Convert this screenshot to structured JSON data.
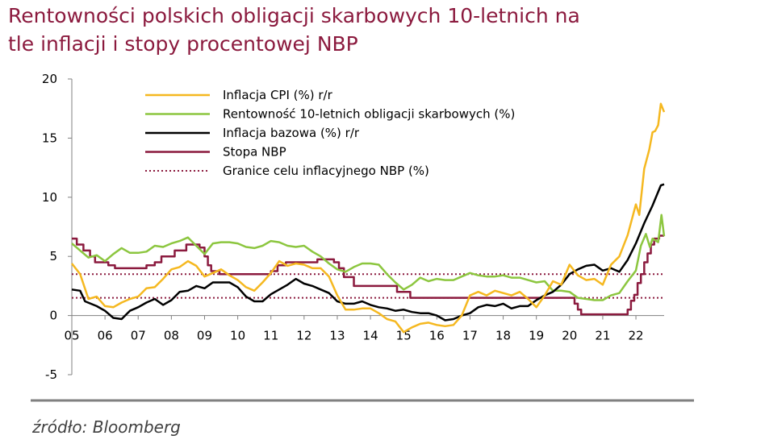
{
  "title_lines": [
    "Rentowności polskich obligacji skarbowych 10-letnich na",
    "tle inflacji i stopy procentowej NBP"
  ],
  "source": "źródło: Bloomberg",
  "colors": {
    "title": "#8b1a3e",
    "cpi": "#f5b820",
    "bond": "#8cc63f",
    "core": "#000000",
    "rate": "#8b1a3e",
    "target": "#8b1a3e",
    "footer_line": "#808080"
  },
  "chart_data": {
    "type": "line",
    "title": "Rentowności polskich obligacji skarbowych 10-letnich na tle inflacji i stopy procentowej NBP",
    "xlabel": "",
    "ylabel": "",
    "xlim": [
      2005,
      2022.85
    ],
    "ylim": [
      -5,
      20
    ],
    "yticks": [
      -5,
      0,
      5,
      10,
      15,
      20
    ],
    "xtick_labels": [
      "05",
      "06",
      "07",
      "08",
      "09",
      "10",
      "11",
      "12",
      "13",
      "14",
      "15",
      "16",
      "17",
      "18",
      "19",
      "20",
      "21",
      "22"
    ],
    "xtick_values": [
      2005,
      2006,
      2007,
      2008,
      2009,
      2010,
      2011,
      2012,
      2013,
      2014,
      2015,
      2016,
      2017,
      2018,
      2019,
      2020,
      2021,
      2022
    ],
    "grid": false,
    "legend_position": "top-left",
    "series": [
      {
        "name": "Inflacja CPI (%) r/r",
        "color_key": "cpi",
        "style": "solid",
        "points": [
          [
            2005,
            4.4
          ],
          [
            2005.25,
            3.5
          ],
          [
            2005.5,
            1.4
          ],
          [
            2005.75,
            1.6
          ],
          [
            2006,
            0.8
          ],
          [
            2006.25,
            0.7
          ],
          [
            2006.5,
            1.1
          ],
          [
            2006.75,
            1.4
          ],
          [
            2007,
            1.6
          ],
          [
            2007.25,
            2.3
          ],
          [
            2007.5,
            2.4
          ],
          [
            2007.75,
            3.1
          ],
          [
            2008,
            3.9
          ],
          [
            2008.25,
            4.1
          ],
          [
            2008.5,
            4.6
          ],
          [
            2008.75,
            4.2
          ],
          [
            2009,
            3.3
          ],
          [
            2009.25,
            3.6
          ],
          [
            2009.5,
            3.9
          ],
          [
            2009.75,
            3.4
          ],
          [
            2010,
            3.0
          ],
          [
            2010.25,
            2.4
          ],
          [
            2010.5,
            2.1
          ],
          [
            2010.75,
            2.8
          ],
          [
            2011,
            3.6
          ],
          [
            2011.25,
            4.6
          ],
          [
            2011.5,
            4.2
          ],
          [
            2011.75,
            4.4
          ],
          [
            2012,
            4.3
          ],
          [
            2012.25,
            4.0
          ],
          [
            2012.5,
            4.0
          ],
          [
            2012.75,
            3.3
          ],
          [
            2013,
            1.7
          ],
          [
            2013.25,
            0.5
          ],
          [
            2013.5,
            0.5
          ],
          [
            2013.75,
            0.6
          ],
          [
            2014,
            0.6
          ],
          [
            2014.25,
            0.2
          ],
          [
            2014.5,
            -0.3
          ],
          [
            2014.75,
            -0.5
          ],
          [
            2015,
            -1.4
          ],
          [
            2015.25,
            -1.0
          ],
          [
            2015.5,
            -0.7
          ],
          [
            2015.75,
            -0.6
          ],
          [
            2016,
            -0.8
          ],
          [
            2016.25,
            -0.9
          ],
          [
            2016.5,
            -0.8
          ],
          [
            2016.75,
            0.0
          ],
          [
            2017,
            1.7
          ],
          [
            2017.25,
            2.0
          ],
          [
            2017.5,
            1.7
          ],
          [
            2017.75,
            2.1
          ],
          [
            2018,
            1.9
          ],
          [
            2018.25,
            1.7
          ],
          [
            2018.5,
            2.0
          ],
          [
            2018.75,
            1.4
          ],
          [
            2019,
            0.7
          ],
          [
            2019.25,
            1.7
          ],
          [
            2019.5,
            2.9
          ],
          [
            2019.75,
            2.6
          ],
          [
            2020,
            4.3
          ],
          [
            2020.25,
            3.4
          ],
          [
            2020.5,
            3.0
          ],
          [
            2020.75,
            3.1
          ],
          [
            2021,
            2.6
          ],
          [
            2021.25,
            4.3
          ],
          [
            2021.5,
            5.0
          ],
          [
            2021.75,
            6.8
          ],
          [
            2022,
            9.4
          ],
          [
            2022.1,
            8.5
          ],
          [
            2022.25,
            12.4
          ],
          [
            2022.4,
            14.0
          ],
          [
            2022.5,
            15.5
          ],
          [
            2022.58,
            15.6
          ],
          [
            2022.67,
            16.1
          ],
          [
            2022.75,
            17.9
          ],
          [
            2022.85,
            17.2
          ]
        ]
      },
      {
        "name": "Rentowność 10-letnich obligacji skarbowych (%)",
        "color_key": "bond",
        "style": "solid",
        "points": [
          [
            2005,
            6.1
          ],
          [
            2005.25,
            5.5
          ],
          [
            2005.5,
            4.9
          ],
          [
            2005.75,
            5.1
          ],
          [
            2006,
            4.6
          ],
          [
            2006.25,
            5.2
          ],
          [
            2006.5,
            5.7
          ],
          [
            2006.75,
            5.3
          ],
          [
            2007,
            5.3
          ],
          [
            2007.25,
            5.4
          ],
          [
            2007.5,
            5.9
          ],
          [
            2007.75,
            5.8
          ],
          [
            2008,
            6.1
          ],
          [
            2008.25,
            6.3
          ],
          [
            2008.5,
            6.6
          ],
          [
            2008.75,
            5.9
          ],
          [
            2009,
            5.2
          ],
          [
            2009.25,
            6.1
          ],
          [
            2009.5,
            6.2
          ],
          [
            2009.75,
            6.2
          ],
          [
            2010,
            6.1
          ],
          [
            2010.25,
            5.8
          ],
          [
            2010.5,
            5.7
          ],
          [
            2010.75,
            5.9
          ],
          [
            2011,
            6.3
          ],
          [
            2011.25,
            6.2
          ],
          [
            2011.5,
            5.9
          ],
          [
            2011.75,
            5.8
          ],
          [
            2012,
            5.9
          ],
          [
            2012.25,
            5.4
          ],
          [
            2012.5,
            5.0
          ],
          [
            2012.75,
            4.4
          ],
          [
            2013,
            3.9
          ],
          [
            2013.25,
            3.7
          ],
          [
            2013.5,
            4.1
          ],
          [
            2013.75,
            4.4
          ],
          [
            2014,
            4.4
          ],
          [
            2014.25,
            4.3
          ],
          [
            2014.5,
            3.5
          ],
          [
            2014.75,
            2.8
          ],
          [
            2015,
            2.2
          ],
          [
            2015.25,
            2.6
          ],
          [
            2015.5,
            3.2
          ],
          [
            2015.75,
            2.9
          ],
          [
            2016,
            3.1
          ],
          [
            2016.25,
            3.0
          ],
          [
            2016.5,
            3.0
          ],
          [
            2016.75,
            3.3
          ],
          [
            2017,
            3.6
          ],
          [
            2017.25,
            3.4
          ],
          [
            2017.5,
            3.3
          ],
          [
            2017.75,
            3.3
          ],
          [
            2018,
            3.4
          ],
          [
            2018.25,
            3.2
          ],
          [
            2018.5,
            3.2
          ],
          [
            2018.75,
            3.0
          ],
          [
            2019,
            2.8
          ],
          [
            2019.25,
            2.9
          ],
          [
            2019.5,
            2.1
          ],
          [
            2019.75,
            2.1
          ],
          [
            2020,
            2.0
          ],
          [
            2020.25,
            1.5
          ],
          [
            2020.5,
            1.4
          ],
          [
            2020.75,
            1.3
          ],
          [
            2021,
            1.3
          ],
          [
            2021.25,
            1.7
          ],
          [
            2021.5,
            1.9
          ],
          [
            2021.75,
            2.9
          ],
          [
            2022,
            3.8
          ],
          [
            2022.15,
            5.9
          ],
          [
            2022.3,
            6.9
          ],
          [
            2022.42,
            5.8
          ],
          [
            2022.5,
            6.5
          ],
          [
            2022.67,
            6.2
          ],
          [
            2022.77,
            8.5
          ],
          [
            2022.85,
            6.7
          ]
        ]
      },
      {
        "name": "Inflacja bazowa (%) r/r",
        "color_key": "core",
        "style": "solid",
        "points": [
          [
            2005,
            2.2
          ],
          [
            2005.25,
            2.1
          ],
          [
            2005.4,
            1.2
          ],
          [
            2005.75,
            0.8
          ],
          [
            2006,
            0.4
          ],
          [
            2006.25,
            -0.2
          ],
          [
            2006.5,
            -0.3
          ],
          [
            2006.75,
            0.4
          ],
          [
            2007,
            0.7
          ],
          [
            2007.25,
            1.1
          ],
          [
            2007.5,
            1.4
          ],
          [
            2007.75,
            0.9
          ],
          [
            2008,
            1.3
          ],
          [
            2008.25,
            2.0
          ],
          [
            2008.5,
            2.1
          ],
          [
            2008.75,
            2.5
          ],
          [
            2009,
            2.3
          ],
          [
            2009.25,
            2.8
          ],
          [
            2009.5,
            2.8
          ],
          [
            2009.75,
            2.8
          ],
          [
            2010,
            2.4
          ],
          [
            2010.25,
            1.6
          ],
          [
            2010.5,
            1.2
          ],
          [
            2010.75,
            1.2
          ],
          [
            2011,
            1.8
          ],
          [
            2011.25,
            2.2
          ],
          [
            2011.5,
            2.6
          ],
          [
            2011.75,
            3.1
          ],
          [
            2012,
            2.7
          ],
          [
            2012.25,
            2.5
          ],
          [
            2012.5,
            2.2
          ],
          [
            2012.75,
            1.9
          ],
          [
            2013,
            1.2
          ],
          [
            2013.25,
            1.0
          ],
          [
            2013.5,
            1.0
          ],
          [
            2013.75,
            1.2
          ],
          [
            2014,
            0.9
          ],
          [
            2014.25,
            0.7
          ],
          [
            2014.5,
            0.6
          ],
          [
            2014.75,
            0.4
          ],
          [
            2015,
            0.5
          ],
          [
            2015.25,
            0.3
          ],
          [
            2015.5,
            0.2
          ],
          [
            2015.75,
            0.2
          ],
          [
            2016,
            0.0
          ],
          [
            2016.25,
            -0.4
          ],
          [
            2016.5,
            -0.3
          ],
          [
            2016.75,
            0.0
          ],
          [
            2017,
            0.2
          ],
          [
            2017.25,
            0.7
          ],
          [
            2017.5,
            0.9
          ],
          [
            2017.75,
            0.8
          ],
          [
            2018,
            1.0
          ],
          [
            2018.25,
            0.6
          ],
          [
            2018.5,
            0.8
          ],
          [
            2018.75,
            0.8
          ],
          [
            2019,
            1.3
          ],
          [
            2019.25,
            1.7
          ],
          [
            2019.5,
            2.0
          ],
          [
            2019.75,
            2.6
          ],
          [
            2020,
            3.5
          ],
          [
            2020.25,
            3.9
          ],
          [
            2020.5,
            4.2
          ],
          [
            2020.75,
            4.3
          ],
          [
            2021,
            3.8
          ],
          [
            2021.25,
            4.0
          ],
          [
            2021.5,
            3.7
          ],
          [
            2021.75,
            4.7
          ],
          [
            2022,
            6.1
          ],
          [
            2022.25,
            7.8
          ],
          [
            2022.5,
            9.3
          ],
          [
            2022.75,
            11.0
          ],
          [
            2022.85,
            11.1
          ]
        ]
      },
      {
        "name": "Stopa NBP",
        "color_key": "rate",
        "style": "solid",
        "steps": [
          [
            2005,
            6.5
          ],
          [
            2005.15,
            6.0
          ],
          [
            2005.35,
            5.5
          ],
          [
            2005.55,
            5.0
          ],
          [
            2005.7,
            4.5
          ],
          [
            2006.1,
            4.25
          ],
          [
            2006.3,
            4.0
          ],
          [
            2007.25,
            4.25
          ],
          [
            2007.5,
            4.5
          ],
          [
            2007.7,
            5.0
          ],
          [
            2008.1,
            5.5
          ],
          [
            2008.45,
            6.0
          ],
          [
            2008.85,
            5.75
          ],
          [
            2009,
            5.0
          ],
          [
            2009.1,
            4.25
          ],
          [
            2009.2,
            3.75
          ],
          [
            2009.45,
            3.5
          ],
          [
            2011,
            3.75
          ],
          [
            2011.2,
            4.25
          ],
          [
            2011.45,
            4.5
          ],
          [
            2012.4,
            4.75
          ],
          [
            2012.9,
            4.5
          ],
          [
            2013.05,
            4.0
          ],
          [
            2013.2,
            3.25
          ],
          [
            2013.5,
            2.5
          ],
          [
            2014.8,
            2.0
          ],
          [
            2015.2,
            1.5
          ],
          [
            2020.15,
            1.0
          ],
          [
            2020.25,
            0.5
          ],
          [
            2020.35,
            0.1
          ],
          [
            2021.75,
            0.5
          ],
          [
            2021.85,
            1.25
          ],
          [
            2021.95,
            1.75
          ],
          [
            2022.05,
            2.75
          ],
          [
            2022.15,
            3.5
          ],
          [
            2022.25,
            4.5
          ],
          [
            2022.35,
            5.25
          ],
          [
            2022.45,
            6.0
          ],
          [
            2022.55,
            6.5
          ],
          [
            2022.7,
            6.75
          ],
          [
            2022.85,
            6.75
          ]
        ]
      },
      {
        "name": "Granice celu inflacyjnego NBP (%)",
        "color_key": "target",
        "style": "dotted",
        "levels": [
          1.5,
          3.5
        ]
      }
    ]
  }
}
